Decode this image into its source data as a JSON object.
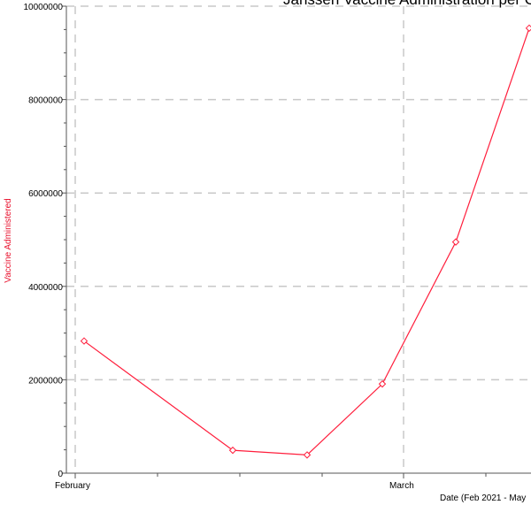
{
  "chart_data": {
    "type": "line",
    "title": "Janssen Vaccine Administration per C",
    "xlabel": "Date (Feb 2021 - May",
    "ylabel": "Vaccine Administered",
    "x_tick_labels": [
      "February",
      "March"
    ],
    "y_tick_labels": [
      "0",
      "2000000",
      "4000000",
      "6000000",
      "8000000",
      "10000000"
    ],
    "ylim": [
      0,
      10000000
    ],
    "grid": true,
    "series": [
      {
        "values": [
          2830000,
          490000,
          390000,
          1910000,
          4950000,
          9530000
        ]
      }
    ],
    "colors": {
      "line": "#ff1e3c",
      "marker": "#ff1e3c",
      "ylabel": "#e8102c",
      "grid": "#c8c8c8",
      "axis": "#555555"
    }
  }
}
